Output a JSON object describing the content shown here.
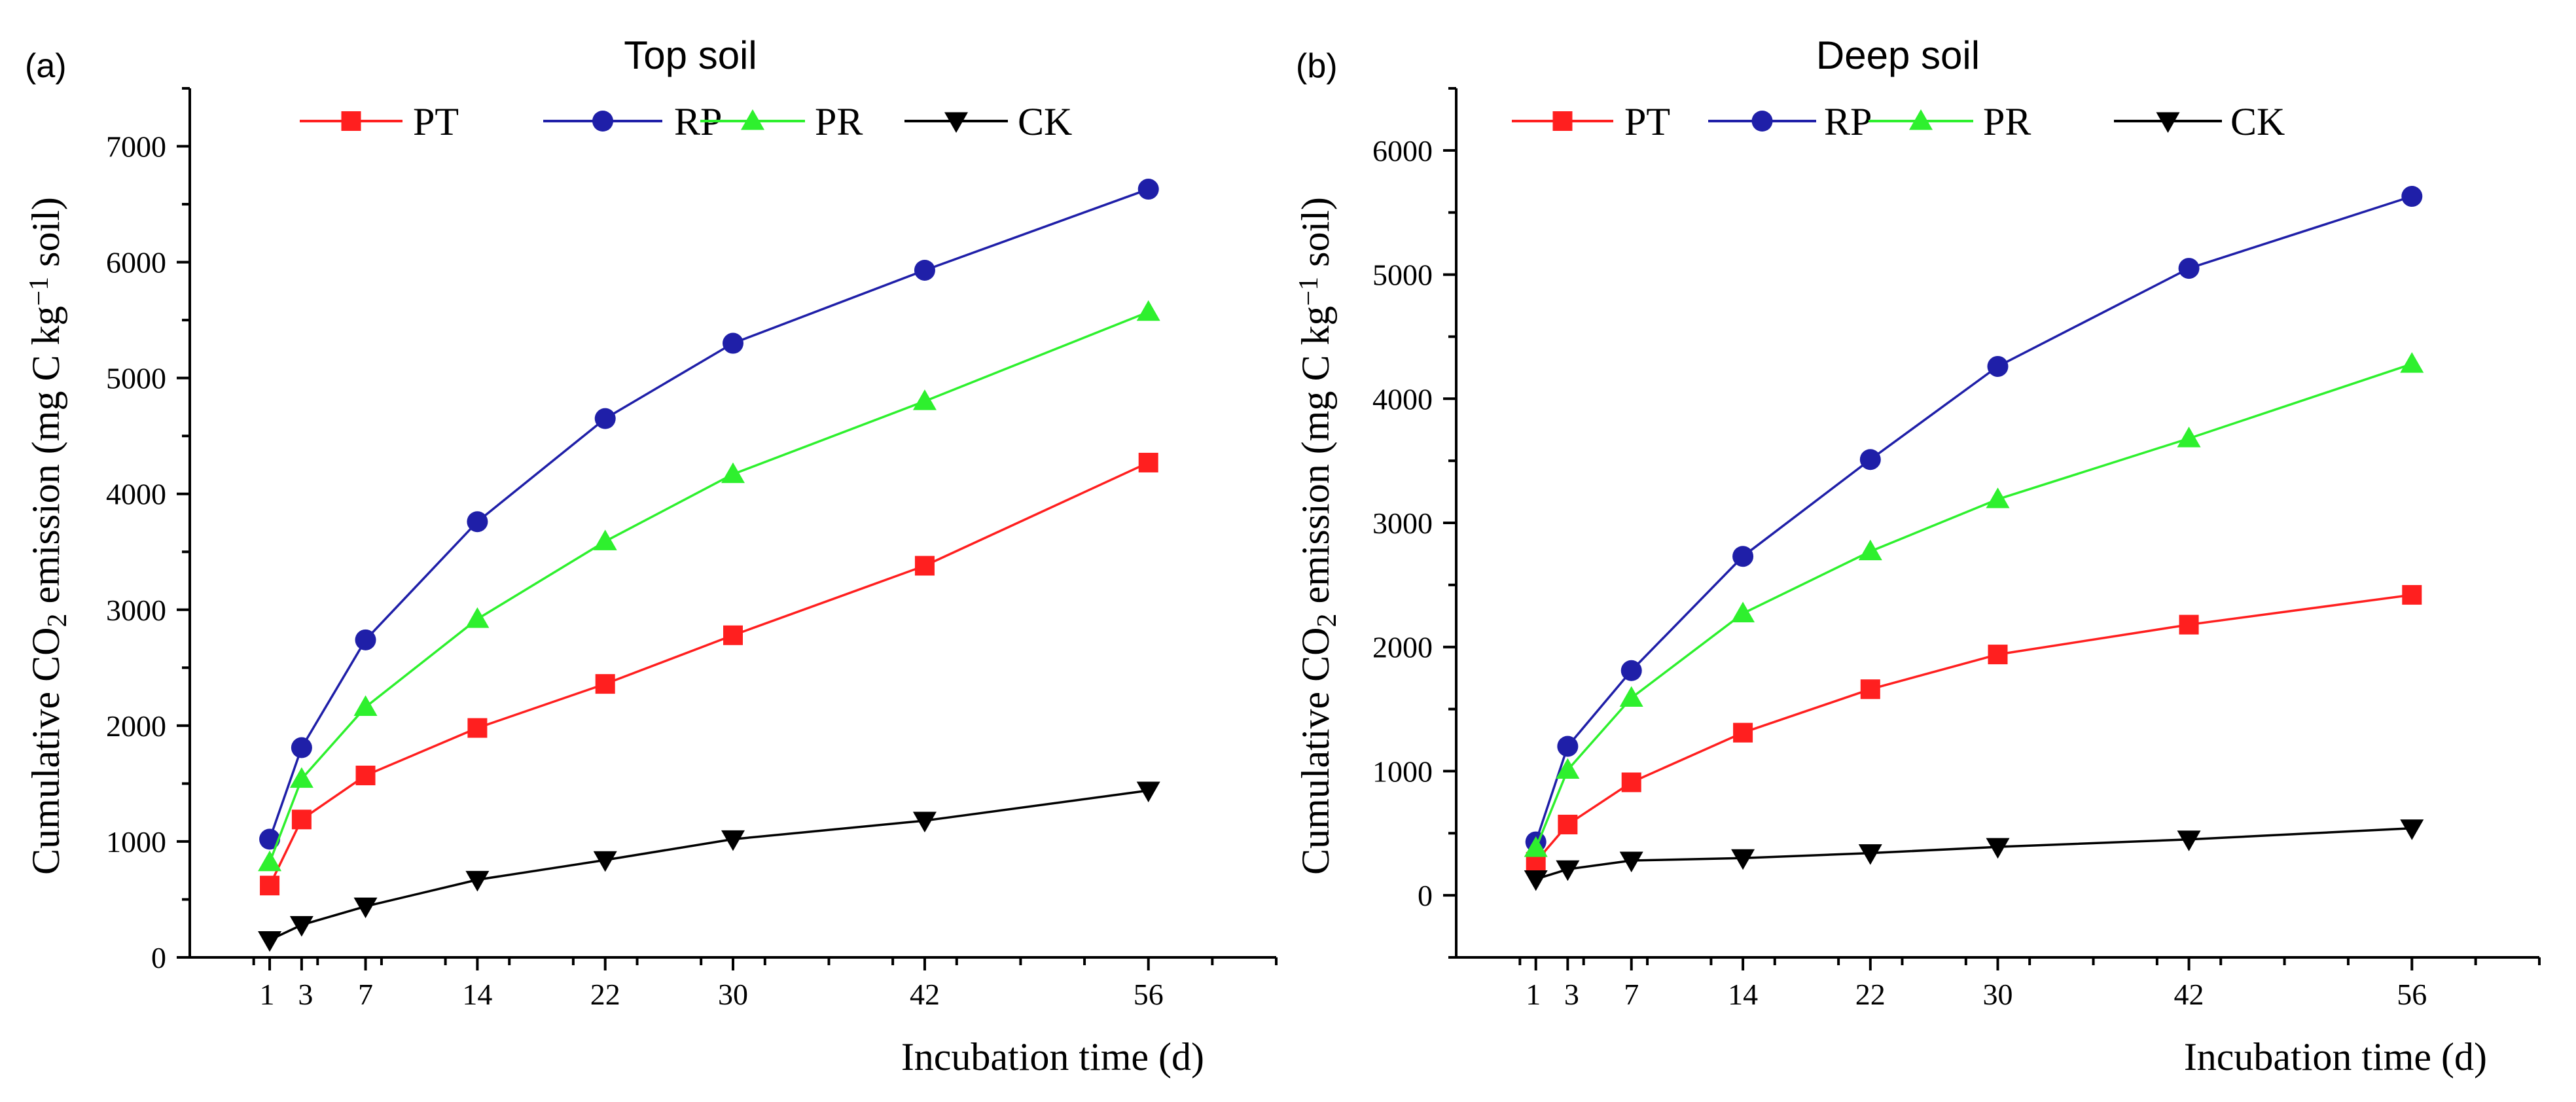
{
  "chart_data": [
    {
      "type": "line",
      "panel_label": "(a)",
      "title": "Top soil",
      "xlabel": "Incubation time (d)",
      "ylabel": {
        "prefix": "Cumulative CO",
        "subscript": "2",
        "middle": " emission (mg C kg",
        "superscript": "−1",
        "suffix": " soil)"
      },
      "x_ticks": [
        1,
        3,
        7,
        14,
        22,
        30,
        42,
        56
      ],
      "x_tick_labels": [
        "1",
        "3",
        "7",
        "14",
        "22",
        "30",
        "42",
        "56"
      ],
      "xlim": [
        -4,
        64
      ],
      "y_ticks": [
        0,
        1000,
        2000,
        3000,
        4000,
        5000,
        6000,
        7000
      ],
      "y_tick_labels": [
        "0",
        "1000",
        "2000",
        "3000",
        "4000",
        "5000",
        "6000",
        "7000"
      ],
      "ylim": [
        0,
        7500
      ],
      "x": [
        1,
        3,
        7,
        14,
        22,
        30,
        42,
        56
      ],
      "legend_position": "top-center",
      "series": [
        {
          "name": "PT",
          "color": "#ff1f1f",
          "marker": "square",
          "values": [
            620,
            1190,
            1570,
            1980,
            2360,
            2780,
            3380,
            4270
          ]
        },
        {
          "name": "RP",
          "color": "#1f1fa8",
          "marker": "circle",
          "values": [
            1020,
            1810,
            2740,
            3760,
            4650,
            5300,
            5930,
            6630
          ]
        },
        {
          "name": "PR",
          "color": "#2ef02e",
          "marker": "triangle-up",
          "values": [
            820,
            1540,
            2160,
            2920,
            3590,
            4170,
            4800,
            5570
          ]
        },
        {
          "name": "CK",
          "color": "#000000",
          "marker": "triangle-down",
          "values": [
            150,
            280,
            440,
            670,
            840,
            1020,
            1180,
            1440
          ]
        }
      ]
    },
    {
      "type": "line",
      "panel_label": "(b)",
      "title": "Deep soil",
      "xlabel": "Incubation time (d)",
      "ylabel": {
        "prefix": "Cumulative CO",
        "subscript": "2",
        "middle": " emission (mg C kg",
        "superscript": "−1",
        "suffix": " soil)"
      },
      "x_ticks": [
        1,
        3,
        7,
        14,
        22,
        30,
        42,
        56
      ],
      "x_tick_labels": [
        "1",
        "3",
        "7",
        "14",
        "22",
        "30",
        "42",
        "56"
      ],
      "xlim": [
        -4,
        64
      ],
      "y_ticks": [
        0,
        1000,
        2000,
        3000,
        4000,
        5000,
        6000
      ],
      "y_tick_labels": [
        "0",
        "1000",
        "2000",
        "3000",
        "4000",
        "5000",
        "6000"
      ],
      "ylim": [
        -500,
        6500
      ],
      "x": [
        1,
        3,
        7,
        14,
        22,
        30,
        42,
        56
      ],
      "legend_position": "top-center",
      "series": [
        {
          "name": "PT",
          "color": "#ff1f1f",
          "marker": "square",
          "values": [
            270,
            570,
            910,
            1310,
            1660,
            1940,
            2180,
            2420
          ]
        },
        {
          "name": "RP",
          "color": "#1f1fa8",
          "marker": "circle",
          "values": [
            430,
            1200,
            1810,
            2730,
            3510,
            4260,
            5050,
            5630
          ]
        },
        {
          "name": "PR",
          "color": "#2ef02e",
          "marker": "triangle-up",
          "values": [
            380,
            1010,
            1590,
            2270,
            2770,
            3190,
            3680,
            4280
          ]
        },
        {
          "name": "CK",
          "color": "#000000",
          "marker": "triangle-down",
          "values": [
            130,
            210,
            280,
            300,
            340,
            390,
            450,
            540
          ]
        }
      ]
    }
  ]
}
